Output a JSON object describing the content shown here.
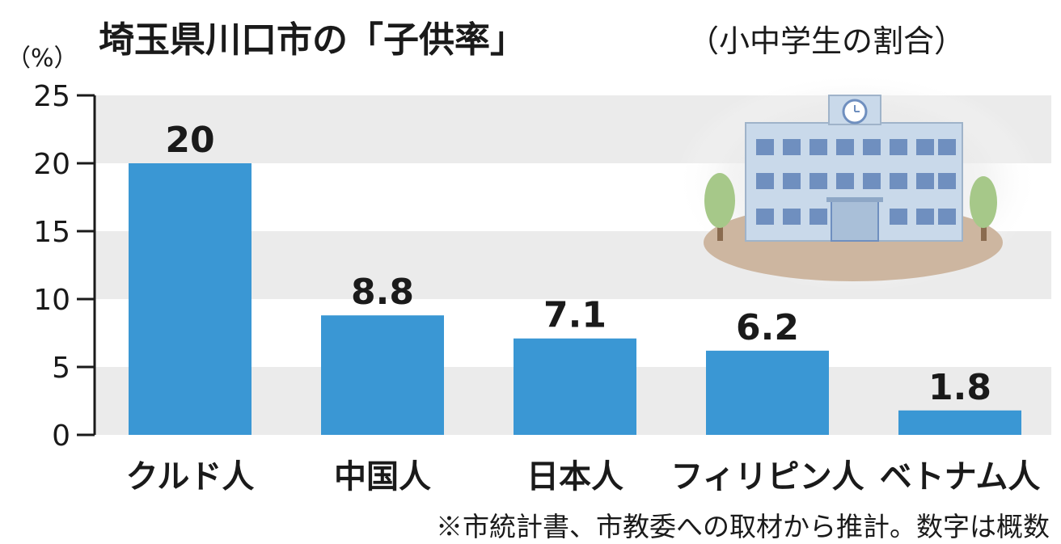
{
  "chart_data": {
    "type": "bar",
    "title": "埼玉県川口市の「子供率」",
    "subtitle": "（小中学生の割合）",
    "unit_label": "（%）",
    "categories": [
      "クルド人",
      "中国人",
      "日本人",
      "フィリピン人",
      "ベトナム人"
    ],
    "values": [
      20,
      8.8,
      7.1,
      6.2,
      1.8
    ],
    "data_labels": [
      "20",
      "8.8",
      "7.1",
      "6.2",
      "1.8"
    ],
    "ylim": [
      0,
      25
    ],
    "yticks": [
      0,
      5,
      10,
      15,
      20,
      25
    ],
    "ytick_labels": [
      "0",
      "5",
      "10",
      "15",
      "20",
      "25"
    ],
    "grid": "alternating bands",
    "legend": "none",
    "note": "※市統計書、市教委への取材から推計。数字は概数"
  },
  "colors": {
    "bar": "#3a97d4",
    "band": "#ebebeb",
    "text": "#1a1a1a",
    "building": "#c9d9ea",
    "window": "#6f8fbf",
    "tree": "#a6c889",
    "ground": "#cdb6a0"
  },
  "illustration": {
    "icon": "school-building-icon"
  }
}
